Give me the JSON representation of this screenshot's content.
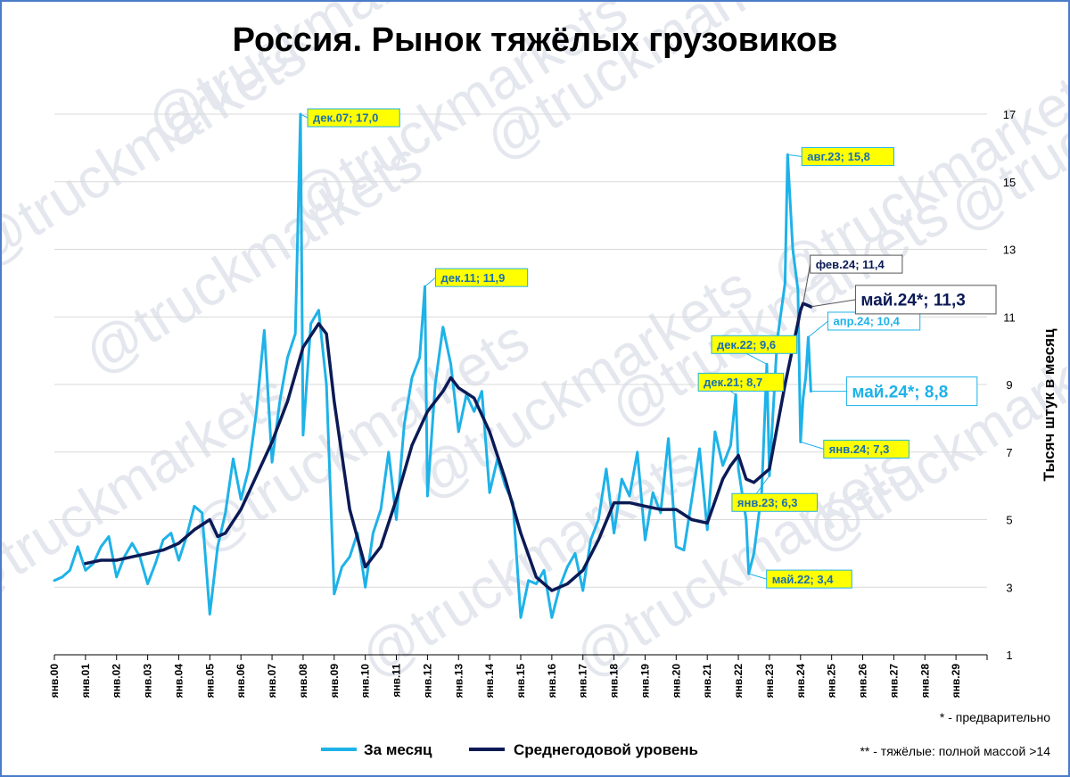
{
  "chart_data": {
    "type": "line",
    "title": "Россия. Рынок тяжёлых грузовиков",
    "ylabel": "Тысяч штук в месяц",
    "ylim": [
      1,
      17
    ],
    "yticks": [
      "1",
      "3",
      "5",
      "7",
      "9",
      "11",
      "13",
      "15",
      "17"
    ],
    "x_tick_labels": [
      "янв.00",
      "янв.01",
      "янв.02",
      "янв.03",
      "янв.04",
      "янв.05",
      "янв.06",
      "янв.07",
      "янв.08",
      "янв.09",
      "янв.10",
      "янв.11",
      "янв.12",
      "янв.13",
      "янв.14",
      "янв.15",
      "янв.16",
      "янв.17",
      "янв.18",
      "янв.19",
      "янв.20",
      "янв.21",
      "янв.22",
      "янв.23",
      "янв.24",
      "янв.25",
      "янв.26",
      "янв.27",
      "янв.28",
      "янв.29"
    ],
    "grid": "horizontal",
    "legend_position": "bottom",
    "series": [
      {
        "name": "За месяц",
        "color": "#1eb2e8",
        "points": [
          [
            "янв.00",
            3.2
          ],
          [
            "апр.00",
            3.3
          ],
          [
            "июл.00",
            3.5
          ],
          [
            "окт.00",
            4.2
          ],
          [
            "янв.01",
            3.5
          ],
          [
            "апр.01",
            3.7
          ],
          [
            "июл.01",
            4.2
          ],
          [
            "окт.01",
            4.5
          ],
          [
            "янв.02",
            3.3
          ],
          [
            "апр.02",
            3.9
          ],
          [
            "июл.02",
            4.3
          ],
          [
            "окт.02",
            3.9
          ],
          [
            "янв.03",
            3.1
          ],
          [
            "апр.03",
            3.7
          ],
          [
            "июл.03",
            4.4
          ],
          [
            "окт.03",
            4.6
          ],
          [
            "янв.04",
            3.8
          ],
          [
            "апр.04",
            4.5
          ],
          [
            "июл.04",
            5.4
          ],
          [
            "окт.04",
            5.2
          ],
          [
            "янв.05",
            2.2
          ],
          [
            "апр.05",
            4.2
          ],
          [
            "июл.05",
            5.2
          ],
          [
            "окт.05",
            6.8
          ],
          [
            "янв.06",
            5.6
          ],
          [
            "апр.06",
            6.5
          ],
          [
            "июл.06",
            8.2
          ],
          [
            "окт.06",
            10.6
          ],
          [
            "янв.07",
            6.7
          ],
          [
            "апр.07",
            8.5
          ],
          [
            "июл.07",
            9.8
          ],
          [
            "окт.07",
            10.5
          ],
          [
            "дек.07",
            17.0
          ],
          [
            "янв.08",
            7.5
          ],
          [
            "апр.08",
            10.8
          ],
          [
            "июл.08",
            11.2
          ],
          [
            "окт.08",
            9.0
          ],
          [
            "янв.09",
            2.8
          ],
          [
            "апр.09",
            3.6
          ],
          [
            "июл.09",
            3.9
          ],
          [
            "окт.09",
            4.6
          ],
          [
            "янв.10",
            3.0
          ],
          [
            "апр.10",
            4.6
          ],
          [
            "июл.10",
            5.3
          ],
          [
            "окт.10",
            7.0
          ],
          [
            "янв.11",
            5.0
          ],
          [
            "апр.11",
            7.8
          ],
          [
            "июл.11",
            9.2
          ],
          [
            "окт.11",
            9.8
          ],
          [
            "дек.11",
            11.9
          ],
          [
            "янв.12",
            5.7
          ],
          [
            "апр.12",
            9.0
          ],
          [
            "июл.12",
            10.7
          ],
          [
            "окт.12",
            9.6
          ],
          [
            "янв.13",
            7.6
          ],
          [
            "апр.13",
            8.7
          ],
          [
            "июл.13",
            8.2
          ],
          [
            "окт.13",
            8.8
          ],
          [
            "янв.14",
            5.8
          ],
          [
            "апр.14",
            6.8
          ],
          [
            "июл.14",
            6.0
          ],
          [
            "окт.14",
            5.5
          ],
          [
            "янв.15",
            2.1
          ],
          [
            "апр.15",
            3.2
          ],
          [
            "июл.15",
            3.1
          ],
          [
            "окт.15",
            3.5
          ],
          [
            "янв.16",
            2.1
          ],
          [
            "апр.16",
            3.0
          ],
          [
            "июл.16",
            3.6
          ],
          [
            "окт.16",
            4.0
          ],
          [
            "янв.17",
            2.9
          ],
          [
            "апр.17",
            4.4
          ],
          [
            "июл.17",
            5.0
          ],
          [
            "окт.17",
            6.5
          ],
          [
            "янв.18",
            4.6
          ],
          [
            "апр.18",
            6.2
          ],
          [
            "июл.18",
            5.7
          ],
          [
            "окт.18",
            7.0
          ],
          [
            "янв.19",
            4.4
          ],
          [
            "апр.19",
            5.8
          ],
          [
            "июл.19",
            5.2
          ],
          [
            "окт.19",
            7.4
          ],
          [
            "янв.20",
            4.2
          ],
          [
            "апр.20",
            4.1
          ],
          [
            "июл.20",
            5.6
          ],
          [
            "окт.20",
            7.1
          ],
          [
            "янв.21",
            4.7
          ],
          [
            "апр.21",
            7.6
          ],
          [
            "июл.21",
            6.6
          ],
          [
            "окт.21",
            7.2
          ],
          [
            "дек.21",
            8.7
          ],
          [
            "янв.22",
            6.5
          ],
          [
            "апр.22",
            5.0
          ],
          [
            "май.22",
            3.4
          ],
          [
            "июл.22",
            4.0
          ],
          [
            "окт.22",
            5.8
          ],
          [
            "дек.22",
            9.6
          ],
          [
            "янв.23",
            6.3
          ],
          [
            "апр.23",
            10.3
          ],
          [
            "июл.23",
            12.0
          ],
          [
            "авг.23",
            15.8
          ],
          [
            "окт.23",
            13.0
          ],
          [
            "дек.23",
            11.8
          ],
          [
            "янв.24",
            7.3
          ],
          [
            "фев.24",
            8.6
          ],
          [
            "мар.24",
            9.2
          ],
          [
            "апр.24",
            10.4
          ],
          [
            "май.24",
            8.8
          ]
        ]
      },
      {
        "name": "Среднегодовой уровень",
        "color": "#0b1a55",
        "points": [
          [
            "янв.01",
            3.7
          ],
          [
            "июл.01",
            3.8
          ],
          [
            "янв.02",
            3.8
          ],
          [
            "июл.02",
            3.9
          ],
          [
            "янв.03",
            4.0
          ],
          [
            "июл.03",
            4.1
          ],
          [
            "янв.04",
            4.3
          ],
          [
            "июл.04",
            4.7
          ],
          [
            "янв.05",
            5.0
          ],
          [
            "апр.05",
            4.5
          ],
          [
            "июл.05",
            4.6
          ],
          [
            "янв.06",
            5.3
          ],
          [
            "июл.06",
            6.3
          ],
          [
            "янв.07",
            7.3
          ],
          [
            "июл.07",
            8.5
          ],
          [
            "янв.08",
            10.1
          ],
          [
            "июл.08",
            10.8
          ],
          [
            "окт.08",
            10.5
          ],
          [
            "янв.09",
            8.5
          ],
          [
            "июл.09",
            5.3
          ],
          [
            "янв.10",
            3.6
          ],
          [
            "июл.10",
            4.2
          ],
          [
            "янв.11",
            5.6
          ],
          [
            "июл.11",
            7.2
          ],
          [
            "янв.12",
            8.2
          ],
          [
            "июл.12",
            8.8
          ],
          [
            "окт.12",
            9.2
          ],
          [
            "янв.13",
            8.9
          ],
          [
            "июл.13",
            8.6
          ],
          [
            "янв.14",
            7.6
          ],
          [
            "июл.14",
            6.2
          ],
          [
            "янв.15",
            4.6
          ],
          [
            "июл.15",
            3.3
          ],
          [
            "янв.16",
            2.9
          ],
          [
            "июл.16",
            3.1
          ],
          [
            "янв.17",
            3.5
          ],
          [
            "июл.17",
            4.4
          ],
          [
            "янв.18",
            5.5
          ],
          [
            "июл.18",
            5.5
          ],
          [
            "янв.19",
            5.4
          ],
          [
            "июл.19",
            5.3
          ],
          [
            "янв.20",
            5.3
          ],
          [
            "июл.20",
            5.0
          ],
          [
            "янв.21",
            4.9
          ],
          [
            "июл.21",
            6.2
          ],
          [
            "окт.21",
            6.6
          ],
          [
            "янв.22",
            6.9
          ],
          [
            "апр.22",
            6.2
          ],
          [
            "июл.22",
            6.1
          ],
          [
            "янв.23",
            6.5
          ],
          [
            "июл.23",
            9.0
          ],
          [
            "янв.24",
            11.2
          ],
          [
            "фев.24",
            11.4
          ],
          [
            "май.24",
            11.3
          ]
        ]
      }
    ],
    "annotations": [
      {
        "point": "дек.07",
        "value": 17.0,
        "series": "За месяц",
        "text": "дек.07; 17,0"
      },
      {
        "point": "дек.11",
        "value": 11.9,
        "series": "За месяц",
        "text": "дек.11; 11,9"
      },
      {
        "point": "дек.21",
        "value": 8.7,
        "series": "За месяц",
        "text": "дек.21; 8,7"
      },
      {
        "point": "дек.22",
        "value": 9.6,
        "series": "За месяц",
        "text": "дек.22; 9,6"
      },
      {
        "point": "май.22",
        "value": 3.4,
        "series": "За месяц",
        "text": "май.22; 3,4"
      },
      {
        "point": "янв.23",
        "value": 6.3,
        "series": "За месяц",
        "text": "янв.23; 6,3"
      },
      {
        "point": "авг.23",
        "value": 15.8,
        "series": "За месяц",
        "text": "авг.23; 15,8"
      },
      {
        "point": "янв.24",
        "value": 7.3,
        "series": "За месяц",
        "text": "янв.24; 7,3"
      },
      {
        "point": "апр.24",
        "value": 10.4,
        "series": "За месяц",
        "text": "апр.24; 10,4"
      },
      {
        "point": "май.24",
        "value": 8.8,
        "series": "За месяц",
        "text": "май.24*; 8,8"
      },
      {
        "point": "фев.24",
        "value": 11.4,
        "series": "Среднегодовой уровень",
        "text": "фев.24; 11,4"
      },
      {
        "point": "май.24",
        "value": 11.3,
        "series": "Среднегодовой уровень",
        "text": "май.24*; 11,3"
      }
    ],
    "notes": [
      "* - предварительно",
      "** - тяжёлые: полной массой >14"
    ],
    "watermark": "@truckmarkets"
  }
}
